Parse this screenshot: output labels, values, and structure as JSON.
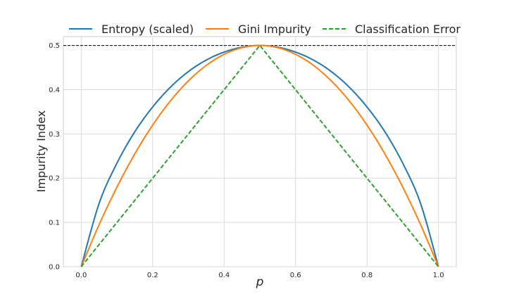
{
  "chart_data": {
    "type": "line",
    "title": "",
    "xlabel": "p",
    "ylabel": "Impurity Index",
    "xlim": [
      -0.05,
      1.05
    ],
    "ylim": [
      0.0,
      0.52
    ],
    "xticks": [
      "0.0",
      "0.2",
      "0.4",
      "0.6",
      "0.8",
      "1.0"
    ],
    "yticks": [
      "0.0",
      "0.1",
      "0.2",
      "0.3",
      "0.4",
      "0.5"
    ],
    "grid": true,
    "legend_position": "top-center",
    "reference_line": {
      "y": 0.5,
      "style": "dashed",
      "color": "#000000"
    },
    "series": [
      {
        "name": "Entropy (scaled)",
        "color": "#1f77b4",
        "style": "solid",
        "x": [
          0.0,
          0.05,
          0.1,
          0.15,
          0.2,
          0.25,
          0.3,
          0.35,
          0.4,
          0.45,
          0.5,
          0.55,
          0.6,
          0.65,
          0.7,
          0.75,
          0.8,
          0.85,
          0.9,
          0.95,
          1.0
        ],
        "values": [
          0.0,
          0.143,
          0.234,
          0.305,
          0.361,
          0.406,
          0.441,
          0.467,
          0.485,
          0.496,
          0.5,
          0.496,
          0.485,
          0.467,
          0.441,
          0.406,
          0.361,
          0.305,
          0.234,
          0.143,
          0.0
        ]
      },
      {
        "name": "Gini Impurity",
        "color": "#ff7f0e",
        "style": "solid",
        "x": [
          0.0,
          0.05,
          0.1,
          0.15,
          0.2,
          0.25,
          0.3,
          0.35,
          0.4,
          0.45,
          0.5,
          0.55,
          0.6,
          0.65,
          0.7,
          0.75,
          0.8,
          0.85,
          0.9,
          0.95,
          1.0
        ],
        "values": [
          0.0,
          0.095,
          0.18,
          0.255,
          0.32,
          0.375,
          0.42,
          0.455,
          0.48,
          0.495,
          0.5,
          0.495,
          0.48,
          0.455,
          0.42,
          0.375,
          0.32,
          0.255,
          0.18,
          0.095,
          0.0
        ]
      },
      {
        "name": "Classification Error",
        "color": "#2ca02c",
        "style": "dashed",
        "x": [
          0.0,
          0.5,
          1.0
        ],
        "values": [
          0.0,
          0.5,
          0.0
        ]
      }
    ]
  }
}
